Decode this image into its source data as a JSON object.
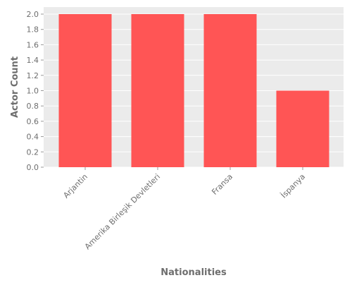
{
  "chart_data": {
    "type": "bar",
    "categories": [
      "Arjantin",
      "Amerika Birleşik Devletleri",
      "Fransa",
      "İspanya"
    ],
    "values": [
      2,
      2,
      2,
      1
    ],
    "title": "",
    "xlabel": "Nationalities",
    "ylabel": "Actor Count",
    "ylim": [
      0,
      2.0
    ],
    "yticks": [
      "0.0",
      "0.2",
      "0.4",
      "0.6",
      "0.8",
      "1.0",
      "1.2",
      "1.4",
      "1.6",
      "1.8",
      "2.0"
    ],
    "grid": true,
    "legend": "none",
    "colors": {
      "bar": "#ff5555",
      "plot_background": "#ebebeb",
      "grid": "#ffffff",
      "text": "#6e6e6e"
    }
  }
}
